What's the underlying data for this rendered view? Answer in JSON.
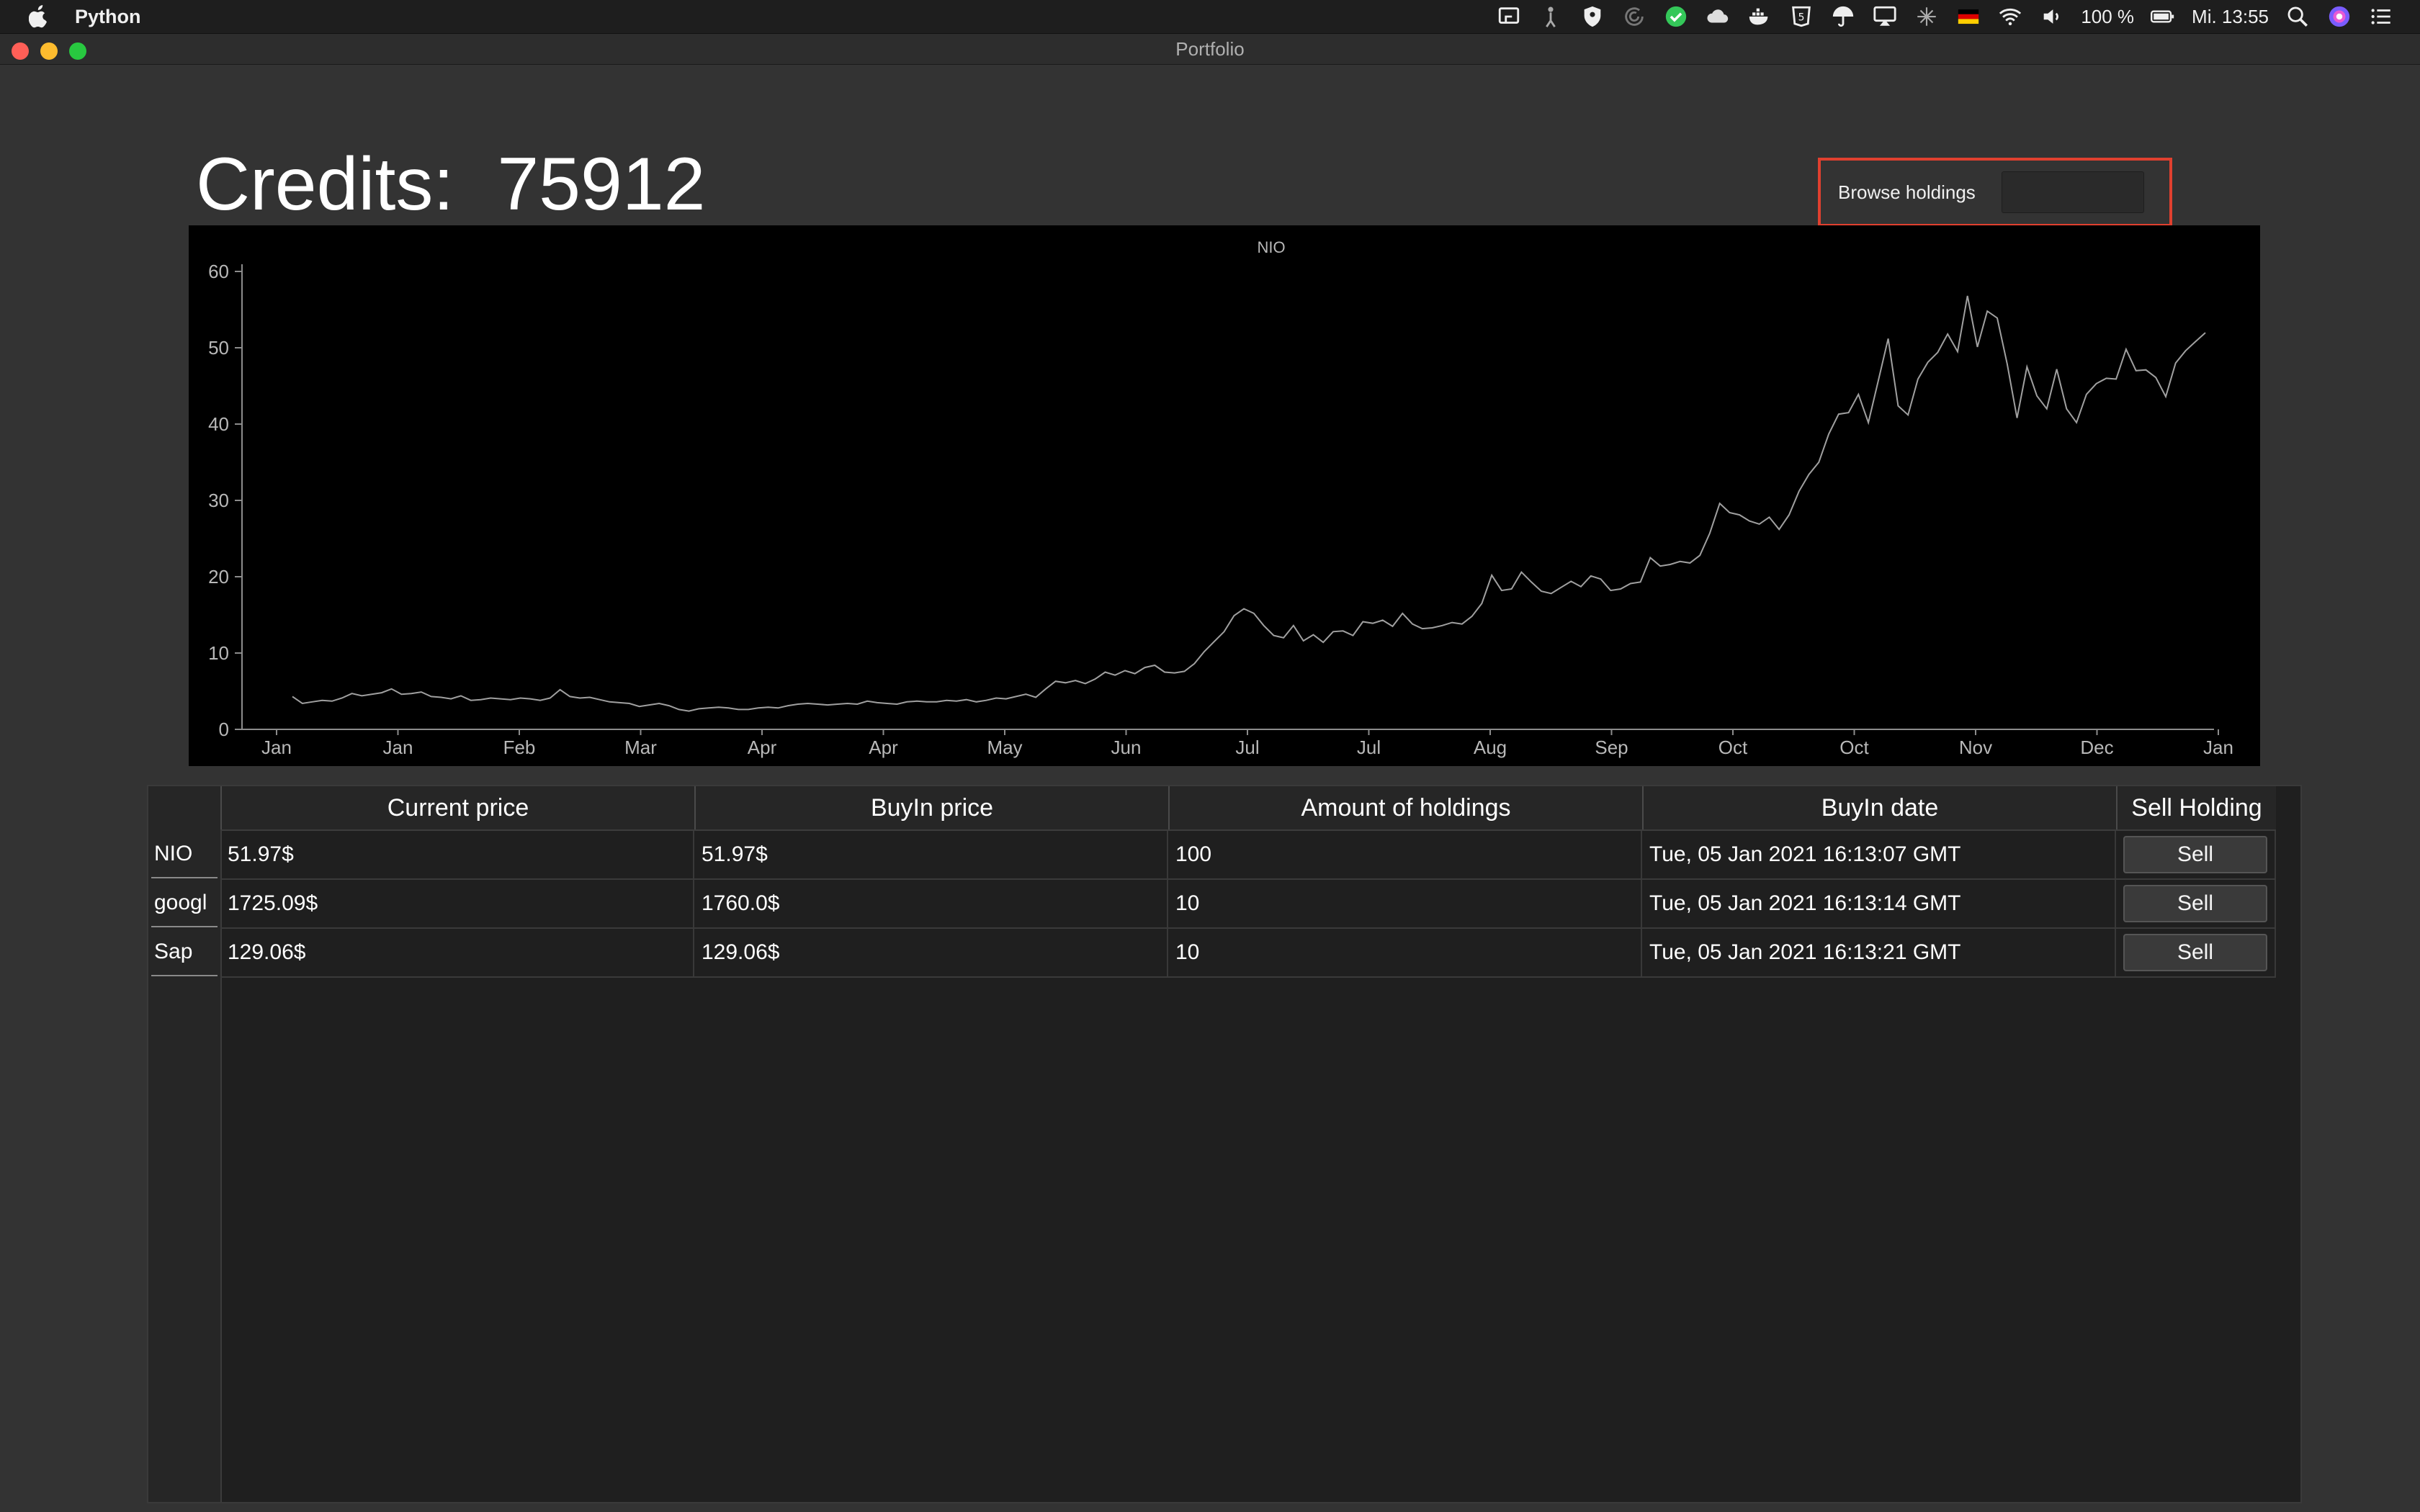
{
  "menubar": {
    "app_name": "Python",
    "battery": "100 %",
    "clock": "Mi. 13:55",
    "icons": [
      "apple-icon",
      "screen-mirror-icon",
      "accessibility-icon",
      "shield-icon",
      "sync-icon",
      "checkmark-icon",
      "cloud-icon",
      "docker-icon",
      "html5-icon",
      "umbrella-icon",
      "airplay-icon",
      "plus-cross-icon",
      "german-flag-icon",
      "wifi-icon",
      "volume-icon",
      "battery-icon",
      "spotlight-icon",
      "siri-icon",
      "control-center-icon"
    ]
  },
  "window": {
    "title": "Portfolio"
  },
  "credits": {
    "label": "Credits:",
    "value": "75912"
  },
  "browse": {
    "label": "Browse holdings",
    "value": ""
  },
  "chart_data": {
    "type": "line",
    "title": "NIO",
    "xlabel": "",
    "ylabel": "",
    "ylim": [
      0,
      60
    ],
    "yticks": [
      0,
      10,
      20,
      30,
      40,
      50,
      60
    ],
    "xtick_labels": [
      "Jan",
      "Jan",
      "Feb",
      "Mar",
      "Apr",
      "Apr",
      "May",
      "Jun",
      "Jul",
      "Jul",
      "Aug",
      "Sep",
      "Oct",
      "Oct",
      "Nov",
      "Dec",
      "Jan"
    ],
    "grid": false,
    "line_color": "#a0a0a0",
    "series": [
      {
        "values": [
          4.3,
          3.4,
          3.6,
          3.8,
          3.7,
          4.1,
          4.7,
          4.4,
          4.6,
          4.8,
          5.3,
          4.6,
          4.7,
          4.9,
          4.3,
          4.2,
          4.0,
          4.4,
          3.8,
          3.9,
          4.1,
          4.0,
          3.9,
          4.1,
          4.0,
          3.8,
          4.1,
          5.2,
          4.3,
          4.1,
          4.2,
          3.9,
          3.6,
          3.5,
          3.4,
          3.0,
          3.2,
          3.4,
          3.1,
          2.6,
          2.4,
          2.7,
          2.8,
          2.9,
          2.8,
          2.6,
          2.6,
          2.8,
          2.9,
          2.8,
          3.1,
          3.3,
          3.4,
          3.3,
          3.2,
          3.3,
          3.4,
          3.3,
          3.7,
          3.5,
          3.4,
          3.3,
          3.6,
          3.7,
          3.6,
          3.6,
          3.8,
          3.7,
          3.9,
          3.6,
          3.8,
          4.1,
          4.0,
          4.3,
          4.6,
          4.2,
          5.3,
          6.3,
          6.1,
          6.4,
          6.0,
          6.6,
          7.5,
          7.1,
          7.7,
          7.3,
          8.1,
          8.4,
          7.5,
          7.4,
          7.6,
          8.6,
          10.2,
          11.5,
          12.8,
          14.9,
          15.8,
          15.2,
          13.6,
          12.3,
          12.0,
          13.6,
          11.6,
          12.4,
          11.4,
          12.8,
          12.9,
          12.3,
          14.1,
          13.9,
          14.3,
          13.5,
          15.2,
          13.8,
          13.2,
          13.3,
          13.6,
          14.0,
          13.8,
          14.8,
          16.5,
          20.2,
          18.2,
          18.4,
          20.6,
          19.3,
          18.1,
          17.8,
          18.6,
          19.4,
          18.7,
          20.1,
          19.7,
          18.2,
          18.4,
          19.1,
          19.3,
          22.5,
          21.4,
          21.6,
          22.0,
          21.8,
          22.8,
          25.7,
          29.6,
          28.4,
          28.1,
          27.3,
          26.9,
          27.8,
          26.2,
          28.1,
          31.2,
          33.4,
          35.0,
          38.7,
          41.3,
          41.5,
          43.9,
          40.2,
          45.7,
          51.2,
          42.4,
          41.2,
          45.9,
          48.1,
          49.4,
          51.8,
          49.5,
          56.8,
          50.1,
          54.8,
          53.9,
          47.9,
          40.8,
          47.5,
          43.7,
          42.0,
          47.2,
          42.0,
          40.2,
          43.9,
          45.3,
          46.0,
          45.9,
          49.8,
          47.0,
          47.1,
          46.1,
          43.6,
          48.0,
          49.6,
          50.8,
          51.97
        ]
      }
    ]
  },
  "table": {
    "columns": [
      "Current price",
      "BuyIn price",
      "Amount of holdings",
      "BuyIn date",
      "Sell Holding"
    ],
    "rows": [
      {
        "name": "NIO",
        "current": "51.97$",
        "buyin": "51.97$",
        "amount": "100",
        "date": "Tue, 05 Jan 2021 16:13:07 GMT",
        "action": "Sell"
      },
      {
        "name": "googl",
        "current": "1725.09$",
        "buyin": "1760.0$",
        "amount": "10",
        "date": "Tue, 05 Jan 2021 16:13:14 GMT",
        "action": "Sell"
      },
      {
        "name": "Sap",
        "current": "129.06$",
        "buyin": "129.06$",
        "amount": "10",
        "date": "Tue, 05 Jan 2021 16:13:21 GMT",
        "action": "Sell"
      }
    ]
  }
}
